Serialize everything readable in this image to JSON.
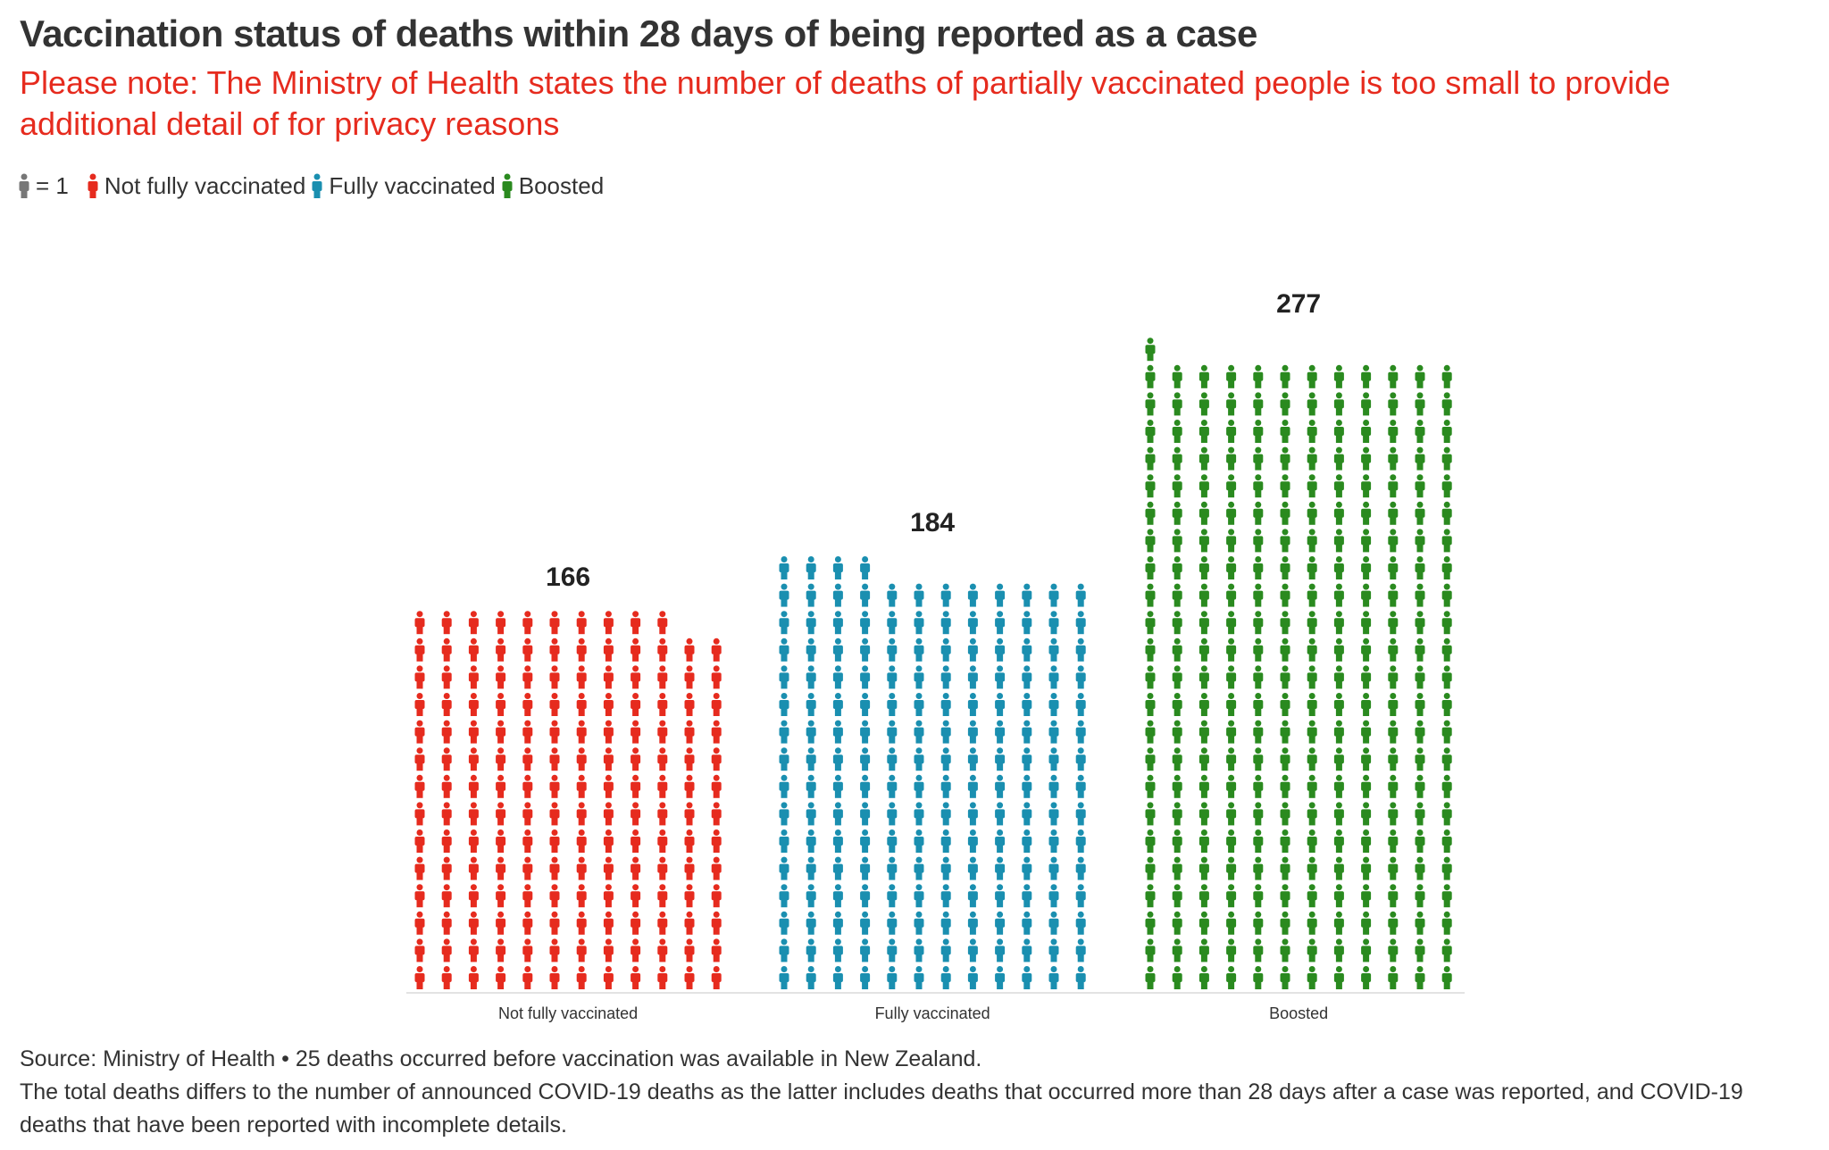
{
  "title": "Vaccination status of deaths within 28 days of being reported as a case",
  "subtitle": "Please note: The Ministry of Health states the number of deaths of partially vaccinated people is too small to provide additional detail of for privacy reasons",
  "legend": {
    "unit_label": "= 1",
    "unit_color": "#777777",
    "items": [
      {
        "label": "Not fully vaccinated",
        "color": "#e62b1e"
      },
      {
        "label": "Fully vaccinated",
        "color": "#1a8fb0"
      },
      {
        "label": "Boosted",
        "color": "#2a8a1f"
      }
    ]
  },
  "chart_data": {
    "type": "waffle",
    "unit": "1 person icon = 1 death",
    "categories": [
      "Not fully vaccinated",
      "Fully vaccinated",
      "Boosted"
    ],
    "values": [
      166,
      184,
      277
    ],
    "colors": [
      "#e62b1e",
      "#1a8fb0",
      "#2a8a1f"
    ],
    "icons_per_row": 12
  },
  "footer": {
    "line1": "Source: Ministry of Health • 25 deaths occurred before vaccination was available in New Zealand.",
    "line2": "The total deaths differs to the number of announced COVID-19 deaths as the latter includes deaths that occurred more than 28 days after a case was reported, and COVID-19 deaths that have been reported with incomplete details."
  }
}
